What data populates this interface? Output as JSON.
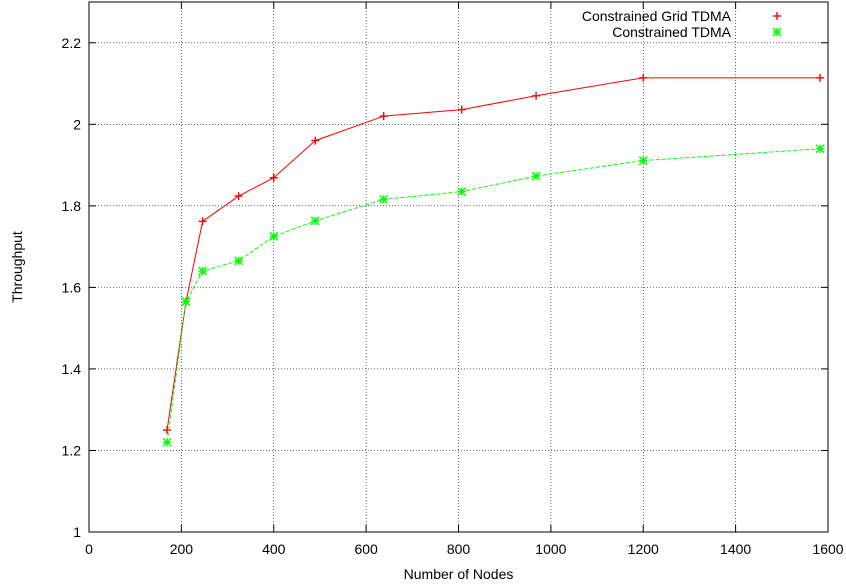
{
  "chart_data": {
    "type": "line",
    "title": "",
    "xlabel": "Number of Nodes",
    "ylabel": "Throughput",
    "xlim": [
      0,
      1600
    ],
    "ylim": [
      1,
      2.3
    ],
    "xticks": [
      0,
      200,
      400,
      600,
      800,
      1000,
      1200,
      1400,
      1600
    ],
    "yticks": [
      1,
      1.2,
      1.4,
      1.6,
      1.8,
      2,
      2.2
    ],
    "ytick_labels": [
      "1",
      "1.2",
      "1.4",
      "1.6",
      "1.8",
      "2",
      "2.2"
    ],
    "grid": true,
    "legend_position": "top-right",
    "series": [
      {
        "name": "Constrained Grid TDMA",
        "color": "#ff0000",
        "marker": "plus",
        "line": "solid",
        "x": [
          169,
          210,
          246,
          324,
          400,
          490,
          638,
          807,
          968,
          1200,
          1583
        ],
        "y": [
          1.25,
          1.565,
          1.762,
          1.824,
          1.869,
          1.96,
          2.02,
          2.036,
          2.07,
          2.114,
          2.114
        ]
      },
      {
        "name": "Constrained TDMA",
        "color": "#00ff00",
        "marker": "star",
        "line": "dashed",
        "x": [
          169,
          210,
          246,
          324,
          400,
          490,
          638,
          807,
          968,
          1200,
          1583
        ],
        "y": [
          1.22,
          1.565,
          1.64,
          1.665,
          1.725,
          1.763,
          1.816,
          1.835,
          1.873,
          1.911,
          1.94
        ]
      }
    ]
  }
}
